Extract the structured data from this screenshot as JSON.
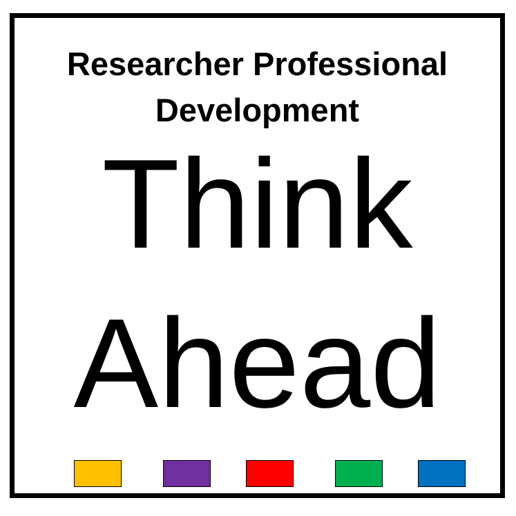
{
  "subtitle": {
    "line1": "Researcher Professional",
    "line2": "Development"
  },
  "headline": {
    "line1": "Think",
    "line2": "Ahead"
  },
  "swatches": [
    {
      "name": "yellow",
      "color": "#FFC000"
    },
    {
      "name": "purple",
      "color": "#7030A0"
    },
    {
      "name": "red",
      "color": "#FF0000"
    },
    {
      "name": "green",
      "color": "#00B050"
    },
    {
      "name": "blue",
      "color": "#0070C0"
    }
  ],
  "colors": {
    "border": "#000000",
    "background": "#FFFFFF",
    "text": "#000000"
  }
}
